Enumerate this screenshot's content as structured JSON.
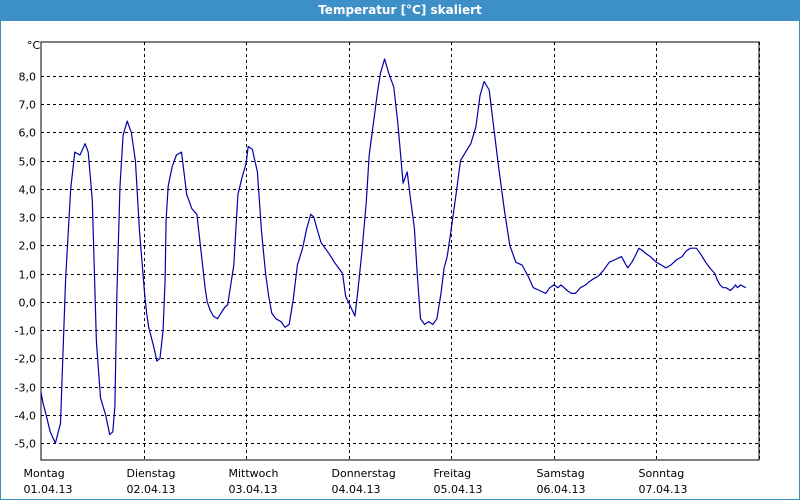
{
  "window": {
    "title": "Temperatur [°C] skaliert"
  },
  "colors": {
    "titlebar": "#3c8fc7",
    "line": "#0000aa",
    "grid": "#000000"
  },
  "chart_data": {
    "type": "line",
    "title": "Temperatur [°C] skaliert",
    "ylabel": "°C",
    "xlabel": "",
    "ylim": [
      -5.6,
      9.2
    ],
    "xlim": [
      0,
      7
    ],
    "grid": true,
    "y_ticks": [
      "8,0",
      "7,0",
      "6,0",
      "5,0",
      "4,0",
      "3,0",
      "2,0",
      "1,0",
      "0,0",
      "-1,0",
      "-2,0",
      "-3,0",
      "-4,0",
      "-5,0"
    ],
    "y_tick_values": [
      8,
      7,
      6,
      5,
      4,
      3,
      2,
      1,
      0,
      -1,
      -2,
      -3,
      -4,
      -5
    ],
    "x_ticks": [
      {
        "day": "Montag",
        "date": "01.04.13",
        "x": 0
      },
      {
        "day": "Dienstag",
        "date": "02.04.13",
        "x": 1
      },
      {
        "day": "Mittwoch",
        "date": "03.04.13",
        "x": 2
      },
      {
        "day": "Donnerstag",
        "date": "04.04.13",
        "x": 3
      },
      {
        "day": "Freitag",
        "date": "05.04.13",
        "x": 4
      },
      {
        "day": "Samstag",
        "date": "06.04.13",
        "x": 5
      },
      {
        "day": "Sonntag",
        "date": "07.04.13",
        "x": 6
      }
    ],
    "series": [
      {
        "x": [
          0,
          0.02,
          0.05,
          0.09,
          0.14,
          0.19,
          0.24,
          0.29,
          0.33,
          0.38,
          0.43,
          0.46,
          0.5,
          0.54,
          0.58,
          0.63,
          0.67,
          0.7,
          0.72,
          0.74,
          0.77,
          0.8,
          0.84,
          0.88,
          0.92,
          0.96,
          1.01,
          1.03,
          1.05,
          1.1,
          1.13,
          1.16,
          1.19,
          1.21,
          1.22,
          1.24,
          1.28,
          1.32,
          1.37,
          1.42,
          1.47,
          1.52,
          1.56,
          1.6,
          1.62,
          1.65,
          1.68,
          1.72,
          1.79,
          1.82,
          1.88,
          1.92,
          1.96,
          2.0,
          2.02,
          2.06,
          2.11,
          2.15,
          2.19,
          2.22,
          2.25,
          2.29,
          2.34,
          2.38,
          2.42,
          2.46,
          2.5,
          2.55,
          2.59,
          2.63,
          2.66,
          2.69,
          2.73,
          2.77,
          2.81,
          2.86,
          2.9,
          2.94,
          2.97,
          3.01,
          3.06,
          3.09,
          3.13,
          3.17,
          3.2,
          3.24,
          3.28,
          3.31,
          3.35,
          3.39,
          3.44,
          3.48,
          3.53,
          3.57,
          3.6,
          3.64,
          3.67,
          3.7,
          3.74,
          3.78,
          3.82,
          3.86,
          3.9,
          3.93,
          3.96,
          4.0,
          4.05,
          4.09,
          4.14,
          4.19,
          4.24,
          4.28,
          4.32,
          4.37,
          4.41,
          4.46,
          4.52,
          4.57,
          4.63,
          4.69,
          4.75,
          4.8,
          4.86,
          4.92,
          4.96,
          5.0,
          5.04,
          5.07,
          5.1,
          5.13,
          5.17,
          5.21,
          5.26,
          5.31,
          5.34,
          5.38,
          5.43,
          5.48,
          5.54,
          5.6,
          5.66,
          5.69,
          5.72,
          5.76,
          5.79,
          5.83,
          5.87,
          5.9,
          5.94,
          5.97,
          6.0,
          6.05,
          6.09,
          6.14,
          6.2,
          6.25,
          6.29,
          6.33,
          6.39,
          6.43,
          6.48,
          6.52,
          6.57,
          6.59,
          6.62,
          6.65,
          6.68,
          6.72,
          6.75,
          6.77,
          6.79,
          6.82,
          6.87
        ],
        "values": [
          -3.2,
          -3.6,
          -4.0,
          -4.6,
          -5.0,
          -4.3,
          0.8,
          4.0,
          5.3,
          5.2,
          5.6,
          5.3,
          3.6,
          -1.4,
          -3.4,
          -4.0,
          -4.7,
          -4.6,
          -3.7,
          0.3,
          4.1,
          5.9,
          6.4,
          6.0,
          5.0,
          2.5,
          0.3,
          -0.4,
          -0.9,
          -1.6,
          -2.1,
          -2.0,
          -1.0,
          0.8,
          2.9,
          4.1,
          4.8,
          5.2,
          5.3,
          3.8,
          3.3,
          3.1,
          1.8,
          0.5,
          0.0,
          -0.3,
          -0.5,
          -0.6,
          -0.2,
          -0.1,
          1.3,
          3.8,
          4.4,
          4.9,
          5.5,
          5.4,
          4.6,
          2.5,
          1.0,
          0.2,
          -0.4,
          -0.6,
          -0.7,
          -0.9,
          -0.8,
          0.1,
          1.3,
          1.9,
          2.6,
          3.1,
          3.0,
          2.6,
          2.1,
          1.9,
          1.7,
          1.4,
          1.2,
          1.0,
          0.2,
          -0.1,
          -0.5,
          0.4,
          1.8,
          3.5,
          5.2,
          6.3,
          7.4,
          8.1,
          8.6,
          8.1,
          7.6,
          6.3,
          4.2,
          4.6,
          3.7,
          2.6,
          0.9,
          -0.6,
          -0.8,
          -0.7,
          -0.8,
          -0.6,
          0.3,
          1.2,
          1.6,
          2.6,
          3.9,
          5.0,
          5.3,
          5.6,
          6.2,
          7.3,
          7.8,
          7.5,
          6.3,
          4.8,
          3.2,
          2.0,
          1.4,
          1.3,
          0.9,
          0.5,
          0.4,
          0.3,
          0.5,
          0.6,
          0.5,
          0.6,
          0.5,
          0.4,
          0.3,
          0.3,
          0.5,
          0.6,
          0.7,
          0.8,
          0.9,
          1.1,
          1.4,
          1.5,
          1.6,
          1.4,
          1.2,
          1.4,
          1.6,
          1.9,
          1.8,
          1.7,
          1.6,
          1.5,
          1.4,
          1.3,
          1.2,
          1.3,
          1.5,
          1.6,
          1.8,
          1.9,
          1.9,
          1.7,
          1.4,
          1.2,
          1.0,
          0.8,
          0.6,
          0.5,
          0.5,
          0.4,
          0.5,
          0.6,
          0.5,
          0.6,
          0.5
        ]
      }
    ]
  }
}
